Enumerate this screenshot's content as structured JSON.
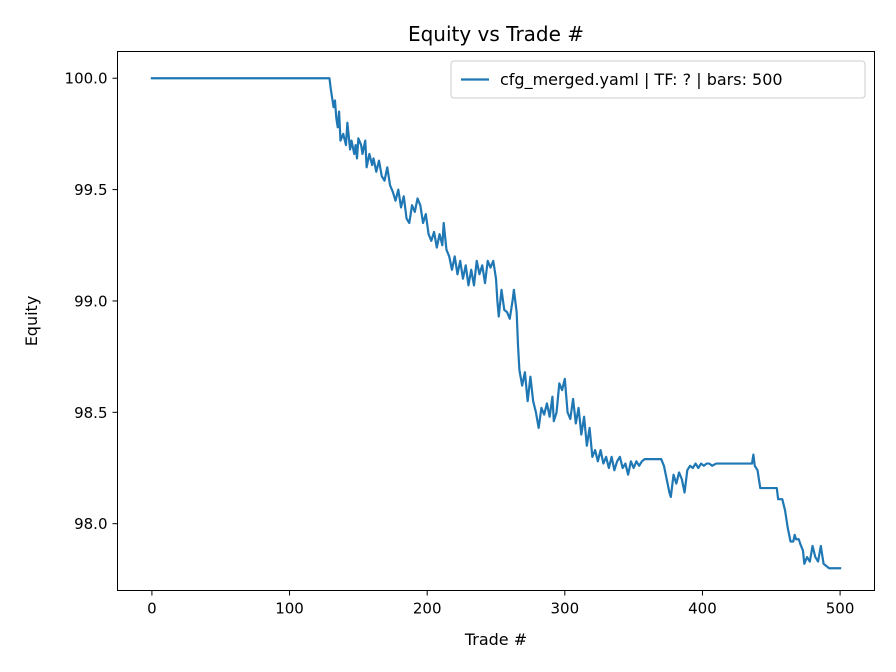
{
  "chart_data": {
    "type": "line",
    "title": "Equity vs Trade #",
    "xlabel": "Trade #",
    "ylabel": "Equity",
    "xlim": [
      -25,
      525
    ],
    "ylim": [
      97.7,
      100.12
    ],
    "xticks": [
      0,
      100,
      200,
      300,
      400,
      500
    ],
    "yticks": [
      98.0,
      98.5,
      99.0,
      99.5,
      100.0
    ],
    "ytick_labels": [
      "98.0",
      "98.5",
      "99.0",
      "99.5",
      "100.0"
    ],
    "grid": false,
    "legend_position": "top-right",
    "series": [
      {
        "name": "cfg_merged.yaml | TF: ? | bars: 500",
        "color": "#1f77b4",
        "points": [
          [
            0,
            100.0
          ],
          [
            60,
            100.0
          ],
          [
            129,
            100.0
          ],
          [
            130,
            99.95
          ],
          [
            132,
            99.87
          ],
          [
            133,
            99.9
          ],
          [
            134,
            99.82
          ],
          [
            135,
            99.78
          ],
          [
            136,
            99.85
          ],
          [
            137,
            99.72
          ],
          [
            139,
            99.75
          ],
          [
            141,
            99.7
          ],
          [
            142,
            99.8
          ],
          [
            144,
            99.68
          ],
          [
            145,
            99.72
          ],
          [
            147,
            99.66
          ],
          [
            148,
            99.7
          ],
          [
            149,
            99.64
          ],
          [
            150,
            99.73
          ],
          [
            152,
            99.7
          ],
          [
            153,
            99.66
          ],
          [
            155,
            99.72
          ],
          [
            156,
            99.6
          ],
          [
            158,
            99.66
          ],
          [
            160,
            99.61
          ],
          [
            161,
            99.64
          ],
          [
            163,
            99.58
          ],
          [
            165,
            99.63
          ],
          [
            167,
            99.56
          ],
          [
            169,
            99.54
          ],
          [
            171,
            99.6
          ],
          [
            173,
            99.52
          ],
          [
            175,
            99.49
          ],
          [
            177,
            99.45
          ],
          [
            179,
            99.5
          ],
          [
            181,
            99.42
          ],
          [
            183,
            99.47
          ],
          [
            185,
            99.37
          ],
          [
            187,
            99.35
          ],
          [
            189,
            99.43
          ],
          [
            191,
            99.4
          ],
          [
            193,
            99.46
          ],
          [
            195,
            99.43
          ],
          [
            197,
            99.35
          ],
          [
            199,
            99.39
          ],
          [
            201,
            99.3
          ],
          [
            203,
            99.27
          ],
          [
            205,
            99.31
          ],
          [
            207,
            99.24
          ],
          [
            209,
            99.3
          ],
          [
            211,
            99.25
          ],
          [
            212,
            99.35
          ],
          [
            214,
            99.23
          ],
          [
            216,
            99.2
          ],
          [
            218,
            99.14
          ],
          [
            220,
            99.2
          ],
          [
            222,
            99.12
          ],
          [
            224,
            99.18
          ],
          [
            226,
            99.1
          ],
          [
            228,
            99.16
          ],
          [
            230,
            99.07
          ],
          [
            232,
            99.14
          ],
          [
            234,
            99.07
          ],
          [
            236,
            99.18
          ],
          [
            238,
            99.12
          ],
          [
            240,
            99.16
          ],
          [
            242,
            99.08
          ],
          [
            244,
            99.18
          ],
          [
            246,
            99.15
          ],
          [
            248,
            99.18
          ],
          [
            250,
            99.1
          ],
          [
            251,
            99.0
          ],
          [
            252,
            98.93
          ],
          [
            254,
            99.05
          ],
          [
            256,
            98.96
          ],
          [
            258,
            98.95
          ],
          [
            260,
            98.92
          ],
          [
            262,
            99.0
          ],
          [
            263,
            99.05
          ],
          [
            265,
            98.95
          ],
          [
            266,
            98.8
          ],
          [
            267,
            98.69
          ],
          [
            269,
            98.62
          ],
          [
            271,
            98.68
          ],
          [
            273,
            98.55
          ],
          [
            275,
            98.66
          ],
          [
            277,
            98.55
          ],
          [
            279,
            98.5
          ],
          [
            281,
            98.43
          ],
          [
            283,
            98.52
          ],
          [
            285,
            98.49
          ],
          [
            287,
            98.54
          ],
          [
            289,
            98.48
          ],
          [
            291,
            98.57
          ],
          [
            292,
            98.46
          ],
          [
            294,
            98.5
          ],
          [
            296,
            98.63
          ],
          [
            298,
            98.6
          ],
          [
            300,
            98.65
          ],
          [
            302,
            98.5
          ],
          [
            304,
            98.47
          ],
          [
            306,
            98.56
          ],
          [
            308,
            98.45
          ],
          [
            310,
            98.52
          ],
          [
            312,
            98.4
          ],
          [
            314,
            98.48
          ],
          [
            316,
            98.35
          ],
          [
            318,
            98.43
          ],
          [
            320,
            98.3
          ],
          [
            322,
            98.33
          ],
          [
            324,
            98.28
          ],
          [
            326,
            98.33
          ],
          [
            328,
            98.27
          ],
          [
            330,
            98.3
          ],
          [
            332,
            98.25
          ],
          [
            334,
            98.3
          ],
          [
            336,
            98.24
          ],
          [
            338,
            98.28
          ],
          [
            340,
            98.3
          ],
          [
            342,
            98.25
          ],
          [
            344,
            98.27
          ],
          [
            346,
            98.22
          ],
          [
            348,
            98.28
          ],
          [
            350,
            98.25
          ],
          [
            352,
            98.28
          ],
          [
            354,
            98.26
          ],
          [
            356,
            98.28
          ],
          [
            358,
            98.29
          ],
          [
            360,
            98.29
          ],
          [
            364,
            98.29
          ],
          [
            370,
            98.29
          ],
          [
            372,
            98.26
          ],
          [
            374,
            98.2
          ],
          [
            376,
            98.14
          ],
          [
            377,
            98.12
          ],
          [
            379,
            98.22
          ],
          [
            381,
            98.18
          ],
          [
            383,
            98.23
          ],
          [
            385,
            98.2
          ],
          [
            387,
            98.14
          ],
          [
            389,
            98.24
          ],
          [
            391,
            98.26
          ],
          [
            393,
            98.25
          ],
          [
            395,
            98.27
          ],
          [
            397,
            98.25
          ],
          [
            399,
            98.27
          ],
          [
            401,
            98.26
          ],
          [
            403,
            98.27
          ],
          [
            405,
            98.27
          ],
          [
            407,
            98.26
          ],
          [
            410,
            98.27
          ],
          [
            420,
            98.27
          ],
          [
            430,
            98.27
          ],
          [
            436,
            98.27
          ],
          [
            437,
            98.31
          ],
          [
            438,
            98.26
          ],
          [
            440,
            98.24
          ],
          [
            442,
            98.16
          ],
          [
            445,
            98.16
          ],
          [
            450,
            98.16
          ],
          [
            454,
            98.16
          ],
          [
            455,
            98.11
          ],
          [
            458,
            98.11
          ],
          [
            460,
            98.06
          ],
          [
            462,
            97.98
          ],
          [
            464,
            97.92
          ],
          [
            466,
            97.92
          ],
          [
            467,
            97.95
          ],
          [
            468,
            97.93
          ],
          [
            470,
            97.93
          ],
          [
            471,
            97.91
          ],
          [
            473,
            97.88
          ],
          [
            474,
            97.82
          ],
          [
            476,
            97.85
          ],
          [
            478,
            97.83
          ],
          [
            480,
            97.9
          ],
          [
            482,
            97.85
          ],
          [
            484,
            97.83
          ],
          [
            486,
            97.9
          ],
          [
            488,
            97.82
          ],
          [
            490,
            97.81
          ],
          [
            492,
            97.8
          ],
          [
            495,
            97.8
          ],
          [
            500,
            97.8
          ]
        ]
      }
    ]
  }
}
